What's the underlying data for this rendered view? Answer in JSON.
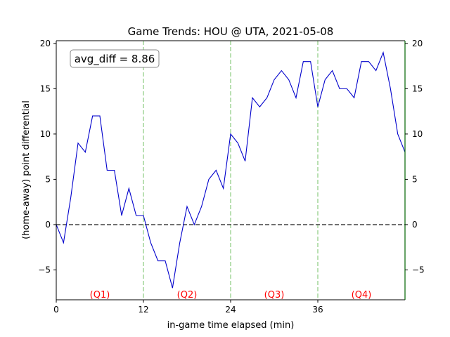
{
  "chart_data": {
    "type": "line",
    "title": "Game Trends: HOU @ UTA, 2021-05-08",
    "xlabel": "in-game time elapsed (min)",
    "ylabel": "(home-away) point differential",
    "xlim": [
      0,
      48
    ],
    "ylim": [
      -8.3,
      20.3
    ],
    "x_ticks": [
      0,
      12,
      24,
      36
    ],
    "y_ticks": [
      -5,
      0,
      5,
      10,
      15,
      20
    ],
    "annotation": "avg_diff = 8.86",
    "quarter_labels": [
      "(Q1)",
      "(Q2)",
      "(Q3)",
      "(Q4)"
    ],
    "quarter_label_x": [
      6,
      18,
      30,
      42
    ],
    "quarter_lines": [
      12,
      24,
      36
    ],
    "reference_line": 0,
    "colors": {
      "series": "#0000cc",
      "quarter_lines": "#a8d8a0",
      "reference_line": "#555555",
      "quarter_labels": "#ff0000",
      "right_spine": "#006400"
    },
    "series": [
      {
        "x": [
          0,
          1,
          2,
          3,
          4,
          5,
          6,
          7,
          8,
          9,
          10,
          11,
          12,
          13,
          14,
          15,
          16,
          17,
          18,
          19,
          20,
          21,
          22,
          23,
          24,
          25,
          26,
          27,
          28,
          29,
          30,
          31,
          32,
          33,
          34,
          35,
          36,
          37,
          38,
          39,
          40,
          41,
          42,
          43,
          44,
          45,
          46,
          47,
          48
        ],
        "values": [
          0,
          -2,
          3,
          9,
          8,
          12,
          12,
          6,
          6,
          1,
          4,
          1,
          1,
          -2,
          -4,
          -4,
          -7,
          -2,
          2,
          0,
          2,
          5,
          6,
          4,
          10,
          9,
          7,
          14,
          13,
          14,
          16,
          17,
          16,
          14,
          18,
          18,
          13,
          16,
          17,
          15,
          15,
          14,
          18,
          18,
          17,
          19,
          15,
          10,
          8
        ]
      }
    ]
  }
}
